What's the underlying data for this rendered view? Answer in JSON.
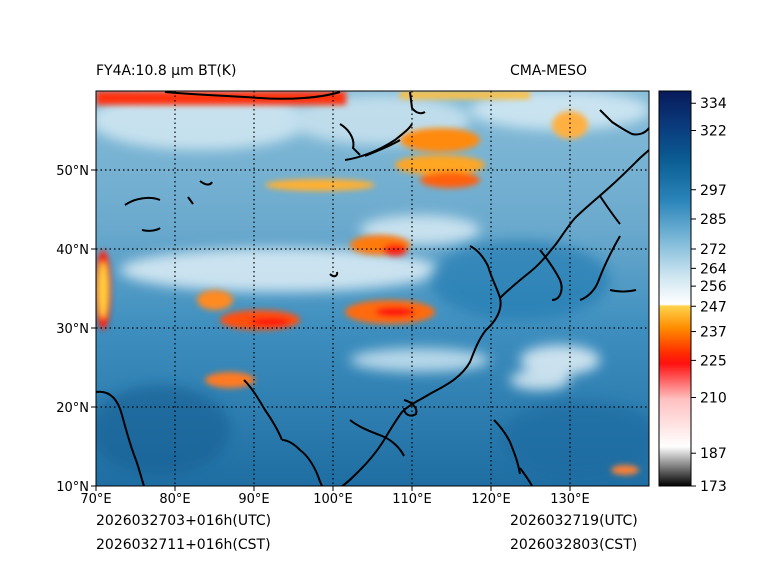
{
  "header": {
    "title_left": "FY4A:10.8 µm BT(K)",
    "title_right": "CMA-MESO"
  },
  "footer": {
    "init_utc": "2026032703+016h(UTC)",
    "init_cst": "2026032711+016h(CST)",
    "valid_utc": "2026032719(UTC)",
    "valid_cst": "2026032803(CST)"
  },
  "map": {
    "projection": "PlateCarree",
    "lon_range": [
      70,
      140
    ],
    "lat_range": [
      10,
      60
    ],
    "lon_ticks": [
      "70°E",
      "80°E",
      "90°E",
      "100°E",
      "110°E",
      "120°E",
      "130°E"
    ],
    "lat_ticks": [
      "10°N",
      "20°N",
      "30°N",
      "40°N",
      "50°N"
    ],
    "gridlines": "dotted"
  },
  "colorbar": {
    "tick_labels": [
      "334",
      "322",
      "297",
      "285",
      "272",
      "264",
      "256",
      "247",
      "237",
      "225",
      "210",
      "187",
      "173"
    ],
    "tick_values": [
      334,
      322,
      297,
      285,
      272,
      264,
      256,
      247,
      237,
      225,
      210,
      187,
      173
    ],
    "range": [
      173,
      340
    ],
    "colors": {
      "cold_low": "#000000",
      "grey": "#9a9a9a",
      "white_pink": "#ffe6e6",
      "red": "#ff1010",
      "orange": "#ff8c00",
      "yellow": "#ffd24a",
      "white": "#ffffff",
      "light_blue": "#a8d4ea",
      "mid_blue": "#3b8fc0",
      "deep_blue": "#0b5f94",
      "navy": "#081a5a"
    }
  }
}
